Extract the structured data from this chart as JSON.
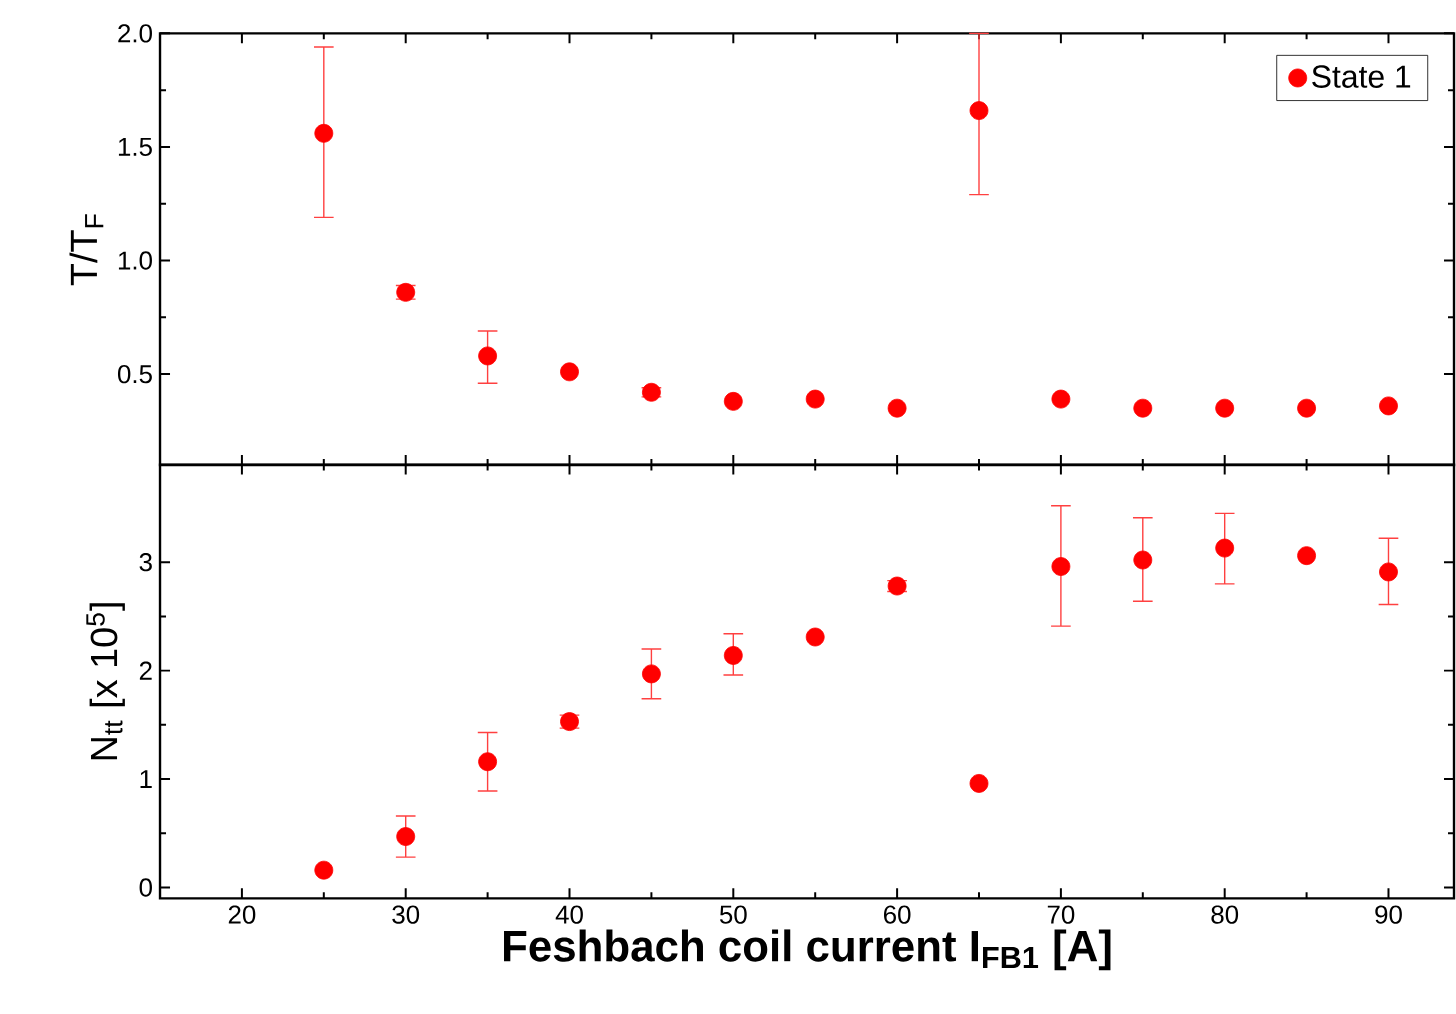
{
  "chart_data": [
    {
      "type": "scatter",
      "ylabel": "T/T$_{F}$",
      "xlim": [
        15,
        94
      ],
      "ylim": [
        0.1,
        2.0
      ],
      "xticks": [
        20,
        30,
        40,
        50,
        60,
        70,
        80,
        90
      ],
      "yticks": [
        {
          "value": 0.5,
          "label": "0.5"
        },
        {
          "value": 1.0,
          "label": "1.0"
        },
        {
          "value": 1.5,
          "label": "1.5"
        },
        {
          "value": 2.0,
          "label": "2.0"
        }
      ],
      "tick_labels": "y",
      "grid": false,
      "legend": "top right",
      "marker": "circle",
      "x": [
        25,
        30,
        35,
        40,
        45,
        50,
        55,
        60,
        65,
        70,
        75,
        80,
        85,
        90
      ],
      "series": [
        {
          "name": "State 1",
          "color": "#ff0000",
          "values": [
            1.56,
            0.86,
            0.58,
            0.51,
            0.42,
            0.38,
            0.39,
            0.35,
            1.66,
            0.39,
            0.35,
            0.35,
            0.35,
            0.36
          ],
          "errors": [
            [
              1.19,
              1.94
            ],
            0.03,
            [
              0.46,
              0.69
            ],
            null,
            0.02,
            null,
            null,
            null,
            [
              1.29,
              2.0
            ],
            null,
            null,
            null,
            null,
            null
          ]
        }
      ]
    },
    {
      "type": "scatter",
      "ylabel": "N$_{tt}$ [x 10$^{5}$]",
      "xlabel": "Feshbach coil current I$_{FB1}$ [A]",
      "xlim": [
        15,
        94
      ],
      "ylim": [
        -0.1,
        3.9
      ],
      "xticks": [
        20,
        30,
        40,
        50,
        60,
        70,
        80,
        90
      ],
      "yticks": [
        0,
        1,
        2,
        3
      ],
      "grid": false,
      "legend": false,
      "marker": "circle",
      "x": [
        25,
        30,
        35,
        40,
        45,
        50,
        55,
        60,
        65,
        70,
        75,
        80,
        85,
        90
      ],
      "series": [
        {
          "color": "#ff0000",
          "values": [
            0.16,
            0.47,
            1.16,
            1.53,
            1.97,
            2.14,
            2.31,
            2.78,
            0.96,
            2.96,
            3.02,
            3.13,
            3.06,
            2.91
          ],
          "errors": [
            null,
            [
              0.28,
              0.66
            ],
            [
              0.89,
              1.43
            ],
            0.06,
            [
              1.74,
              2.2
            ],
            [
              1.96,
              2.34
            ],
            null,
            0.05,
            null,
            [
              2.41,
              3.52
            ],
            [
              2.64,
              3.41
            ],
            [
              2.8,
              3.45
            ],
            null,
            [
              2.61,
              3.22
            ]
          ]
        }
      ]
    }
  ]
}
